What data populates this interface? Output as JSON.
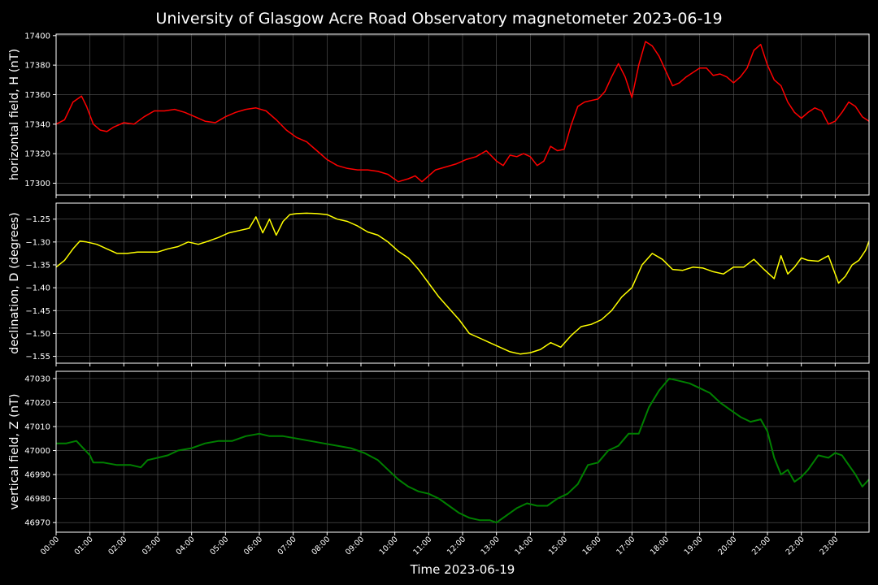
{
  "title": "University of Glasgow Acre Road Observatory magnetometer 2023-06-19",
  "xlabel": "Time 2023-06-19",
  "colors": {
    "background": "#000000",
    "grid": "#5a5a5a",
    "axis": "#ffffff",
    "H": "#ff0000",
    "D": "#ffff00",
    "Z": "#008000"
  },
  "chart_data": [
    {
      "type": "line",
      "ylabel": "horizontal field, H (nT)",
      "ylim": [
        17292,
        17401
      ],
      "yticks": [
        17300,
        17320,
        17340,
        17360,
        17380,
        17400
      ],
      "xlim": [
        0,
        24
      ],
      "grid": true,
      "series": [
        {
          "color": "#ff0000",
          "x": [
            0,
            0.25,
            0.5,
            0.75,
            0.9,
            1.1,
            1.3,
            1.5,
            1.7,
            2,
            2.3,
            2.6,
            2.9,
            3.2,
            3.5,
            3.8,
            4.1,
            4.4,
            4.7,
            5,
            5.3,
            5.6,
            5.9,
            6.2,
            6.5,
            6.8,
            7.1,
            7.4,
            7.7,
            8,
            8.3,
            8.6,
            8.9,
            9.2,
            9.5,
            9.8,
            10.1,
            10.4,
            10.6,
            10.8,
            11,
            11.2,
            11.5,
            11.8,
            12.1,
            12.4,
            12.7,
            13,
            13.2,
            13.4,
            13.6,
            13.8,
            14,
            14.2,
            14.4,
            14.6,
            14.8,
            15,
            15.2,
            15.4,
            15.6,
            15.8,
            16,
            16.2,
            16.4,
            16.6,
            16.8,
            17,
            17.2,
            17.4,
            17.6,
            17.8,
            18,
            18.2,
            18.4,
            18.6,
            18.8,
            19,
            19.2,
            19.4,
            19.6,
            19.8,
            20,
            20.2,
            20.4,
            20.6,
            20.8,
            21,
            21.2,
            21.4,
            21.6,
            21.8,
            22,
            22.2,
            22.4,
            22.6,
            22.8,
            23,
            23.2,
            23.4,
            23.6,
            23.8,
            24
          ],
          "y": [
            17340,
            17343,
            17355,
            17359,
            17352,
            17340,
            17336,
            17335,
            17338,
            17341,
            17340,
            17345,
            17349,
            17349,
            17350,
            17348,
            17345,
            17342,
            17341,
            17345,
            17348,
            17350,
            17351,
            17349,
            17343,
            17336,
            17331,
            17328,
            17322,
            17316,
            17312,
            17310,
            17309,
            17309,
            17308,
            17306,
            17301,
            17303,
            17305,
            17301,
            17305,
            17309,
            17311,
            17313,
            17316,
            17318,
            17322,
            17315,
            17312,
            17319,
            17318,
            17320,
            17318,
            17312,
            17315,
            17325,
            17322,
            17323,
            17339,
            17352,
            17355,
            17356,
            17357,
            17362,
            17372,
            17381,
            17372,
            17358,
            17380,
            17396,
            17393,
            17386,
            17376,
            17366,
            17368,
            17372,
            17375,
            17378,
            17378,
            17373,
            17374,
            17372,
            17368,
            17372,
            17378,
            17390,
            17394,
            17380,
            17370,
            17366,
            17355,
            17348,
            17344,
            17348,
            17351,
            17349,
            17340,
            17342,
            17348,
            17355,
            17352,
            17345,
            17342
          ]
        }
      ]
    },
    {
      "type": "line",
      "ylabel": "declination, D (degrees)",
      "ylim": [
        -1.565,
        -1.215
      ],
      "yticks": [
        -1.55,
        -1.5,
        -1.45,
        -1.4,
        -1.35,
        -1.3,
        -1.25
      ],
      "xlim": [
        0,
        24
      ],
      "grid": true,
      "series": [
        {
          "color": "#ffff00",
          "x": [
            0,
            0.25,
            0.5,
            0.7,
            0.9,
            1.2,
            1.5,
            1.8,
            2.1,
            2.4,
            2.7,
            3,
            3.3,
            3.6,
            3.9,
            4.2,
            4.5,
            4.8,
            5.1,
            5.4,
            5.7,
            5.9,
            6.1,
            6.3,
            6.5,
            6.7,
            6.9,
            7.1,
            7.4,
            7.7,
            8,
            8.3,
            8.6,
            8.9,
            9.2,
            9.5,
            9.8,
            10.1,
            10.4,
            10.7,
            11,
            11.3,
            11.6,
            11.9,
            12.2,
            12.5,
            12.8,
            13.1,
            13.4,
            13.7,
            14,
            14.3,
            14.6,
            14.9,
            15.2,
            15.5,
            15.8,
            16.1,
            16.4,
            16.7,
            17,
            17.3,
            17.6,
            17.9,
            18.2,
            18.5,
            18.8,
            19.1,
            19.4,
            19.7,
            20,
            20.3,
            20.6,
            20.9,
            21.2,
            21.4,
            21.6,
            21.8,
            22,
            22.2,
            22.5,
            22.8,
            23.1,
            23.3,
            23.5,
            23.7,
            23.9,
            24
          ],
          "y": [
            -1.355,
            -1.34,
            -1.315,
            -1.298,
            -1.3,
            -1.305,
            -1.315,
            -1.325,
            -1.325,
            -1.322,
            -1.322,
            -1.322,
            -1.315,
            -1.31,
            -1.3,
            -1.305,
            -1.298,
            -1.29,
            -1.28,
            -1.275,
            -1.27,
            -1.245,
            -1.28,
            -1.25,
            -1.285,
            -1.255,
            -1.24,
            -1.238,
            -1.237,
            -1.238,
            -1.24,
            -1.25,
            -1.255,
            -1.265,
            -1.278,
            -1.285,
            -1.3,
            -1.32,
            -1.335,
            -1.36,
            -1.39,
            -1.42,
            -1.445,
            -1.47,
            -1.5,
            -1.51,
            -1.52,
            -1.53,
            -1.54,
            -1.545,
            -1.542,
            -1.535,
            -1.52,
            -1.53,
            -1.505,
            -1.485,
            -1.48,
            -1.47,
            -1.45,
            -1.42,
            -1.4,
            -1.35,
            -1.325,
            -1.338,
            -1.36,
            -1.362,
            -1.355,
            -1.357,
            -1.365,
            -1.37,
            -1.355,
            -1.355,
            -1.338,
            -1.36,
            -1.38,
            -1.33,
            -1.37,
            -1.355,
            -1.335,
            -1.34,
            -1.342,
            -1.33,
            -1.39,
            -1.375,
            -1.35,
            -1.34,
            -1.318,
            -1.298
          ]
        }
      ]
    },
    {
      "type": "line",
      "ylabel": "vertical field, Z (nT)",
      "ylim": [
        46966,
        47033
      ],
      "yticks": [
        46970,
        46980,
        46990,
        47000,
        47010,
        47020,
        47030
      ],
      "xlim": [
        0,
        24
      ],
      "grid": true,
      "xticks": [
        "00:00",
        "01:00",
        "02:00",
        "03:00",
        "04:00",
        "05:00",
        "06:00",
        "07:00",
        "08:00",
        "09:00",
        "10:00",
        "11:00",
        "12:00",
        "13:00",
        "14:00",
        "15:00",
        "16:00",
        "17:00",
        "18:00",
        "19:00",
        "20:00",
        "21:00",
        "22:00",
        "23:00"
      ],
      "series": [
        {
          "color": "#008000",
          "x": [
            0,
            0.3,
            0.6,
            0.8,
            1,
            1.1,
            1.4,
            1.8,
            2.2,
            2.5,
            2.7,
            3,
            3.3,
            3.6,
            4,
            4.4,
            4.8,
            5.2,
            5.6,
            6,
            6.3,
            6.7,
            7.1,
            7.5,
            7.9,
            8.3,
            8.7,
            9.1,
            9.5,
            9.8,
            10.1,
            10.4,
            10.7,
            11,
            11.3,
            11.6,
            11.9,
            12.2,
            12.5,
            12.8,
            13,
            13.3,
            13.6,
            13.9,
            14.2,
            14.5,
            14.8,
            15.1,
            15.4,
            15.7,
            16,
            16.3,
            16.6,
            16.9,
            17.2,
            17.5,
            17.8,
            18.1,
            18.4,
            18.7,
            19,
            19.3,
            19.6,
            19.9,
            20.2,
            20.5,
            20.8,
            21,
            21.2,
            21.4,
            21.6,
            21.8,
            22,
            22.2,
            22.5,
            22.8,
            23,
            23.2,
            23.4,
            23.6,
            23.8,
            24
          ],
          "y": [
            47003,
            47003,
            47004,
            47001,
            46998,
            46995,
            46995,
            46994,
            46994,
            46993,
            46996,
            46997,
            46998,
            47000,
            47001,
            47003,
            47004,
            47004,
            47006,
            47007,
            47006,
            47006,
            47005,
            47004,
            47003,
            47002,
            47001,
            46999,
            46996,
            46992,
            46988,
            46985,
            46983,
            46982,
            46980,
            46977,
            46974,
            46972,
            46971,
            46971,
            46970,
            46973,
            46976,
            46978,
            46977,
            46977,
            46980,
            46982,
            46986,
            46994,
            46995,
            47000,
            47002,
            47007,
            47007,
            47018,
            47025,
            47030,
            47029,
            47028,
            47026,
            47024,
            47020,
            47017,
            47014,
            47012,
            47013,
            47008,
            46997,
            46990,
            46992,
            46987,
            46989,
            46992,
            46998,
            46997,
            46999,
            46998,
            46994,
            46990,
            46985,
            46988
          ]
        }
      ]
    }
  ]
}
